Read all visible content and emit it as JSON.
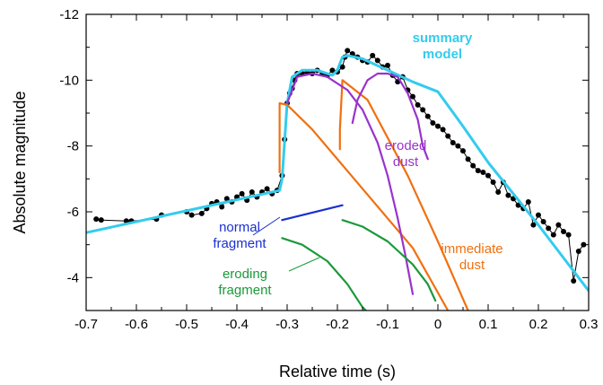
{
  "chart_data": {
    "type": "line",
    "xlabel": "Relative time (s)",
    "ylabel": "Absolute magnitude",
    "xlim": [
      -0.7,
      0.3
    ],
    "ylim": [
      -3,
      -12
    ],
    "y_axis_inverted": true,
    "grid": false,
    "x_ticks": [
      "-0.7",
      "-0.6",
      "-0.5",
      "-0.4",
      "-0.3",
      "-0.2",
      "-0.1",
      "0",
      "0.1",
      "0.2",
      "0.3"
    ],
    "x_tick_values": [
      -0.7,
      -0.6,
      -0.5,
      -0.4,
      -0.3,
      -0.2,
      -0.1,
      0,
      0.1,
      0.2,
      0.3
    ],
    "y_ticks": [
      "-4",
      "-6",
      "-8",
      "-10",
      "-12"
    ],
    "y_tick_values": [
      -4,
      -6,
      -8,
      -10,
      -12
    ],
    "annotations": [
      {
        "key": "summary",
        "lines": [
          "summary",
          "model"
        ],
        "color": "#33ccee"
      },
      {
        "key": "eroded",
        "lines": [
          "eroded",
          "dust"
        ],
        "color": "#9933cc"
      },
      {
        "key": "normal",
        "lines": [
          "normal",
          "fragment"
        ],
        "color": "#1a2fd0"
      },
      {
        "key": "immediate",
        "lines": [
          "immediate",
          "dust"
        ],
        "color": "#f07010"
      },
      {
        "key": "eroding",
        "lines": [
          "eroding",
          "fragment"
        ],
        "color": "#1a9a3a"
      }
    ],
    "observed_points": [
      [
        -0.68,
        -5.78
      ],
      [
        -0.67,
        -5.75
      ],
      [
        -0.62,
        -5.72
      ],
      [
        -0.61,
        -5.72
      ],
      [
        -0.56,
        -5.78
      ],
      [
        -0.55,
        -5.9
      ],
      [
        -0.5,
        -6.0
      ],
      [
        -0.49,
        -5.9
      ],
      [
        -0.47,
        -5.95
      ],
      [
        -0.46,
        -6.1
      ],
      [
        -0.45,
        -6.25
      ],
      [
        -0.44,
        -6.3
      ],
      [
        -0.43,
        -6.15
      ],
      [
        -0.42,
        -6.4
      ],
      [
        -0.41,
        -6.3
      ],
      [
        -0.4,
        -6.45
      ],
      [
        -0.39,
        -6.55
      ],
      [
        -0.38,
        -6.35
      ],
      [
        -0.37,
        -6.6
      ],
      [
        -0.36,
        -6.45
      ],
      [
        -0.35,
        -6.6
      ],
      [
        -0.34,
        -6.7
      ],
      [
        -0.33,
        -6.55
      ],
      [
        -0.32,
        -6.65
      ],
      [
        -0.31,
        -7.1
      ],
      [
        -0.305,
        -8.2
      ],
      [
        -0.3,
        -9.3
      ],
      [
        -0.295,
        -9.6
      ],
      [
        -0.29,
        -9.75
      ],
      [
        -0.285,
        -10.0
      ],
      [
        -0.28,
        -10.2
      ],
      [
        -0.27,
        -10.2
      ],
      [
        -0.26,
        -10.25
      ],
      [
        -0.25,
        -10.2
      ],
      [
        -0.24,
        -10.3
      ],
      [
        -0.23,
        -10.2
      ],
      [
        -0.22,
        -10.15
      ],
      [
        -0.21,
        -10.3
      ],
      [
        -0.2,
        -10.25
      ],
      [
        -0.19,
        -10.4
      ],
      [
        -0.185,
        -10.7
      ],
      [
        -0.18,
        -10.9
      ],
      [
        -0.17,
        -10.8
      ],
      [
        -0.16,
        -10.7
      ],
      [
        -0.15,
        -10.6
      ],
      [
        -0.14,
        -10.55
      ],
      [
        -0.13,
        -10.75
      ],
      [
        -0.12,
        -10.6
      ],
      [
        -0.11,
        -10.4
      ],
      [
        -0.1,
        -10.45
      ],
      [
        -0.09,
        -10.15
      ],
      [
        -0.08,
        -9.95
      ],
      [
        -0.07,
        -10.1
      ],
      [
        -0.06,
        -9.7
      ],
      [
        -0.05,
        -9.5
      ],
      [
        -0.04,
        -9.25
      ],
      [
        -0.03,
        -9.1
      ],
      [
        -0.02,
        -8.9
      ],
      [
        -0.01,
        -8.7
      ],
      [
        0.0,
        -8.6
      ],
      [
        0.01,
        -8.5
      ],
      [
        0.02,
        -8.3
      ],
      [
        0.03,
        -8.1
      ],
      [
        0.04,
        -8.0
      ],
      [
        0.05,
        -7.85
      ],
      [
        0.06,
        -7.6
      ],
      [
        0.07,
        -7.4
      ],
      [
        0.08,
        -7.25
      ],
      [
        0.09,
        -7.2
      ],
      [
        0.1,
        -7.1
      ],
      [
        0.11,
        -6.9
      ],
      [
        0.12,
        -6.6
      ],
      [
        0.13,
        -6.9
      ],
      [
        0.14,
        -6.5
      ],
      [
        0.15,
        -6.4
      ],
      [
        0.16,
        -6.2
      ],
      [
        0.17,
        -6.1
      ],
      [
        0.18,
        -6.3
      ],
      [
        0.19,
        -5.6
      ],
      [
        0.2,
        -5.9
      ],
      [
        0.21,
        -5.7
      ],
      [
        0.22,
        -5.5
      ],
      [
        0.23,
        -5.3
      ],
      [
        0.24,
        -5.6
      ],
      [
        0.25,
        -5.4
      ],
      [
        0.26,
        -5.3
      ],
      [
        0.27,
        -3.9
      ],
      [
        0.28,
        -4.8
      ],
      [
        0.29,
        -5.0
      ]
    ],
    "series": [
      {
        "name": "summary model",
        "color": "#33ccee",
        "x": [
          -0.72,
          -0.315,
          -0.31,
          -0.3,
          -0.29,
          -0.27,
          -0.24,
          -0.21,
          -0.2,
          -0.19,
          -0.18,
          -0.15,
          -0.1,
          -0.05,
          0.0,
          0.05,
          0.1,
          0.2,
          0.3
        ],
        "y": [
          -5.3,
          -6.65,
          -7.0,
          -9.3,
          -10.1,
          -10.3,
          -10.3,
          -10.15,
          -10.3,
          -10.7,
          -10.75,
          -10.65,
          -10.3,
          -9.95,
          -9.65,
          -8.6,
          -7.5,
          -5.6,
          -3.6
        ]
      },
      {
        "name": "normal fragment",
        "color": "#1a2fd0",
        "x": [
          -0.31,
          -0.19
        ],
        "y": [
          -5.75,
          -6.2
        ]
      },
      {
        "name": "immediate dust",
        "color": "#f07010",
        "x": [
          -0.315,
          -0.315,
          -0.3,
          -0.25,
          -0.15,
          -0.05,
          0.02
        ],
        "y": [
          -7.2,
          -9.3,
          -9.25,
          -8.5,
          -6.7,
          -4.9,
          -3.0
        ]
      },
      {
        "name": "immediate dust 2",
        "color": "#f07010",
        "x": [
          -0.195,
          -0.195,
          -0.19,
          -0.14,
          -0.06,
          0.0,
          0.06
        ],
        "y": [
          -7.9,
          -8.5,
          -10.0,
          -9.4,
          -7.1,
          -5.1,
          -3.0
        ]
      },
      {
        "name": "eroded dust",
        "color": "#9933cc",
        "x": [
          -0.3,
          -0.28,
          -0.25,
          -0.22,
          -0.18,
          -0.15,
          -0.12,
          -0.1,
          -0.08,
          -0.065,
          -0.055,
          -0.05
        ],
        "y": [
          -9.3,
          -10.1,
          -10.2,
          -10.1,
          -9.7,
          -9.1,
          -8.1,
          -7.1,
          -5.8,
          -4.7,
          -3.9,
          -3.5
        ]
      },
      {
        "name": "eroded dust 2",
        "color": "#9933cc",
        "x": [
          -0.17,
          -0.16,
          -0.14,
          -0.12,
          -0.1,
          -0.08,
          -0.06,
          -0.04,
          -0.03,
          -0.02
        ],
        "y": [
          -8.7,
          -9.4,
          -10.0,
          -10.2,
          -10.2,
          -10.1,
          -9.6,
          -8.8,
          -8.0,
          -7.6
        ]
      },
      {
        "name": "eroding fragment",
        "color": "#1a9a3a",
        "x": [
          -0.31,
          -0.27,
          -0.22,
          -0.18,
          -0.15,
          -0.14
        ],
        "y": [
          -5.2,
          -5.0,
          -4.5,
          -3.8,
          -3.1,
          -2.95
        ]
      },
      {
        "name": "eroding fragment 2",
        "color": "#1a9a3a",
        "x": [
          -0.19,
          -0.15,
          -0.1,
          -0.05,
          -0.02,
          -0.005
        ],
        "y": [
          -5.75,
          -5.55,
          -5.1,
          -4.4,
          -3.8,
          -3.3
        ]
      }
    ]
  }
}
